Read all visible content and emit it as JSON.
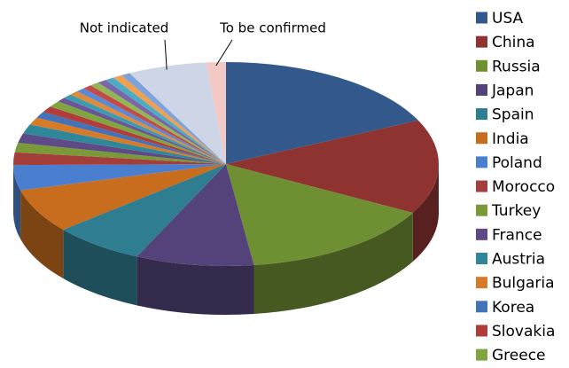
{
  "chart_data": {
    "type": "pie",
    "categories": [
      "USA",
      "China",
      "Russia",
      "Japan",
      "Spain",
      "India",
      "Poland",
      "Morocco",
      "Turkey",
      "France",
      "Austria",
      "Bulgaria",
      "Korea",
      "Slovakia",
      "Greece",
      null,
      null,
      null,
      null,
      null,
      null,
      null,
      null,
      null,
      null,
      "Not indicated",
      "To be confirmed"
    ],
    "values": [
      18,
      15,
      15,
      9,
      7,
      7,
      4,
      2,
      1.5,
      1.5,
      1.5,
      1.2,
      1,
      1,
      1,
      0.7,
      0.7,
      0.7,
      0.7,
      0.7,
      0.7,
      0.7,
      0.7,
      0.7,
      0.7,
      6,
      1.5
    ],
    "colors": [
      "#33598c",
      "#8e3330",
      "#6f8f33",
      "#54437a",
      "#2f7d90",
      "#c86c1e",
      "#4a7fcf",
      "#a33e3b",
      "#7a9a3a",
      "#5e4a86",
      "#2f8899",
      "#d77b2a",
      "#4272b8",
      "#b23c3a",
      "#80a540",
      "#6a5597",
      "#3c9bb0",
      "#e08a3c",
      "#5b8ad3",
      "#c04b48",
      "#93b553",
      "#7a66a8",
      "#4bacc6",
      "#f0a050",
      "#7ea2dc",
      "#cdd5e6",
      "#f2c9c4"
    ],
    "legend": "right"
  }
}
